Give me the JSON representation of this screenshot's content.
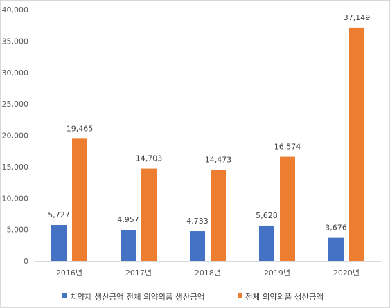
{
  "chart_data": {
    "type": "bar",
    "categories": [
      "2016년",
      "2017년",
      "2018년",
      "2019년",
      "2020년"
    ],
    "series": [
      {
        "name": "치약제 생산금액 전체 의약외품 생산금액",
        "color": "#4472C4",
        "values": [
          5727,
          4957,
          4733,
          5628,
          3676
        ],
        "labels": [
          "5,727",
          "4,957",
          "4,733",
          "5,628",
          "3,676"
        ]
      },
      {
        "name": "전체 의약외품 생산금액",
        "color": "#ED7D31",
        "values": [
          19465,
          14703,
          14473,
          16574,
          37149
        ],
        "labels": [
          "19,465",
          "14,703",
          "14,473",
          "16,574",
          "37,149"
        ]
      }
    ],
    "title": "",
    "xlabel": "",
    "ylabel": "",
    "ylim": [
      0,
      40000
    ],
    "yticks": [
      0,
      5000,
      10000,
      15000,
      20000,
      25000,
      30000,
      35000,
      40000
    ],
    "ytick_labels": [
      "0",
      "5,000",
      "10,000",
      "15,000",
      "20,000",
      "25,000",
      "30,000",
      "35,000",
      "40,000"
    ],
    "grid": false,
    "legend": "bottom"
  }
}
